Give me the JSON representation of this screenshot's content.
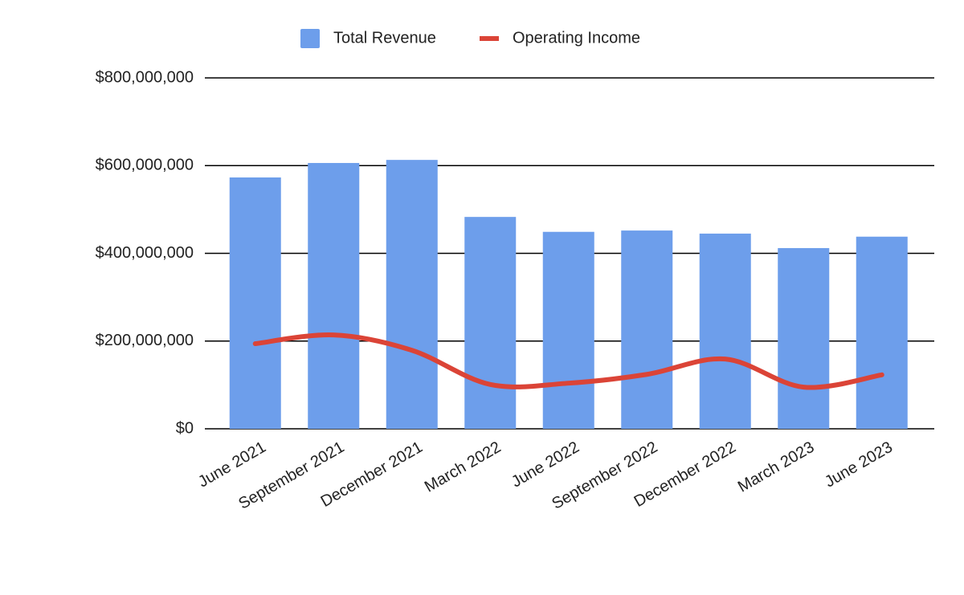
{
  "chart_data": {
    "type": "combo",
    "categories": [
      "June 2021",
      "September 2021",
      "December 2021",
      "March 2022",
      "June 2022",
      "September 2022",
      "December 2022",
      "March 2023",
      "June 2023"
    ],
    "series": [
      {
        "name": "Total Revenue",
        "type": "bar",
        "color": "#6d9eeb",
        "values": [
          573000000,
          606000000,
          613000000,
          483000000,
          449000000,
          452000000,
          445000000,
          412000000,
          438000000
        ]
      },
      {
        "name": "Operating Income",
        "type": "line",
        "color": "#db4437",
        "values": [
          194000000,
          214000000,
          179000000,
          101000000,
          104000000,
          124000000,
          159000000,
          95000000,
          123000000
        ]
      }
    ],
    "ylim": [
      0,
      800000000
    ],
    "yticks": [
      {
        "value": 0,
        "label": "$0"
      },
      {
        "value": 200000000,
        "label": "$200,000,000"
      },
      {
        "value": 400000000,
        "label": "$400,000,000"
      },
      {
        "value": 600000000,
        "label": "$600,000,000"
      },
      {
        "value": 800000000,
        "label": "$800,000,000"
      }
    ],
    "grid": true,
    "legend": "top"
  }
}
